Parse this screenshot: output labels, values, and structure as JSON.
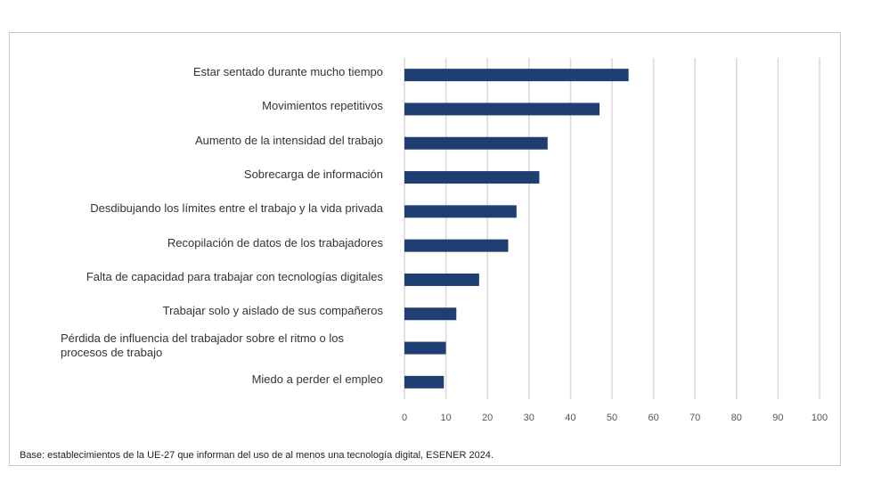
{
  "chart_data": {
    "type": "barh",
    "categories": [
      "Estar sentado durante mucho tiempo",
      "Movimientos repetitivos",
      "Aumento de la intensidad del trabajo",
      "Sobrecarga de información",
      "Desdibujando los límites entre el trabajo y la vida privada",
      "Recopilación de datos de los trabajadores",
      "Falta de capacidad para trabajar con tecnologías digitales",
      "Trabajar solo y aislado de sus compañeros",
      "Pérdida de influencia del trabajador sobre el ritmo o los procesos de trabajo",
      "Miedo a perder el empleo"
    ],
    "values": [
      54,
      47,
      34.5,
      32.5,
      27,
      25,
      18,
      12.5,
      10,
      9.5
    ],
    "color": "#1f3f73",
    "xlim": [
      0,
      100
    ],
    "xticks": [
      0,
      10,
      20,
      30,
      40,
      50,
      60,
      70,
      80,
      90,
      100
    ],
    "grid": true,
    "note": "Base: establecimientos de la UE-27 que informan del uso de al menos una tecnología digital, ESENER 2024."
  }
}
